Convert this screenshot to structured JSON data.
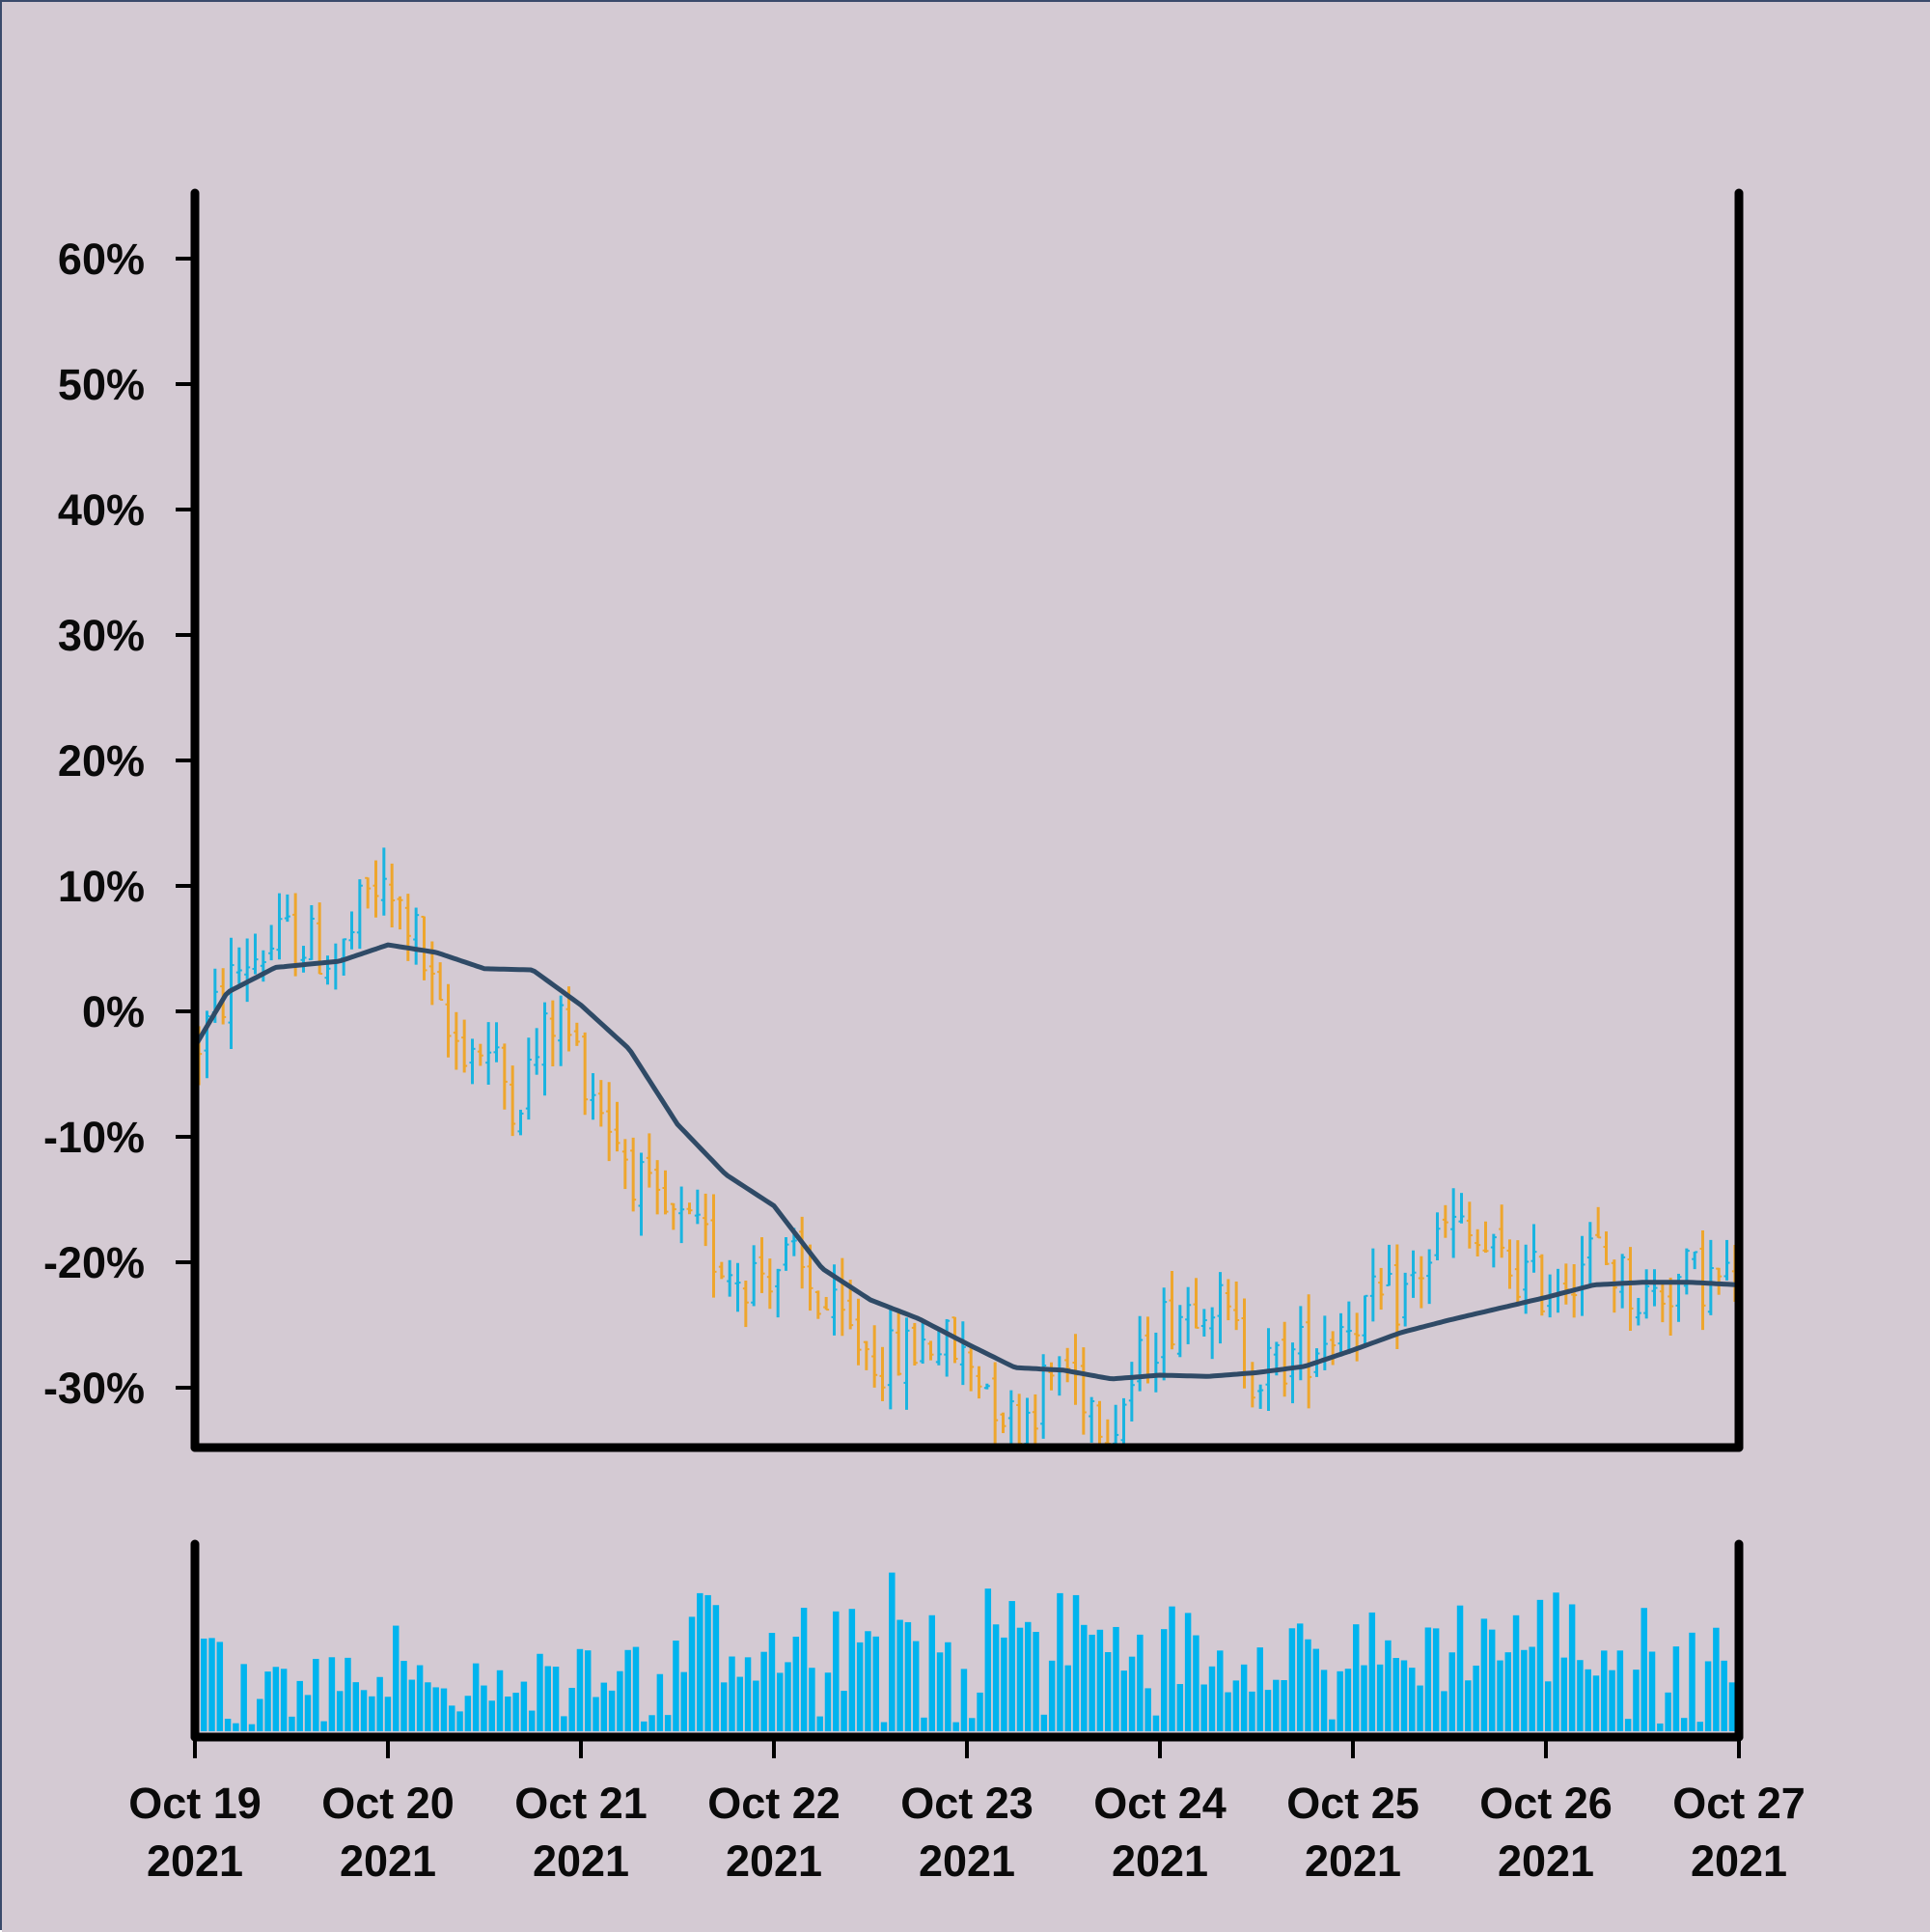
{
  "colors": {
    "background": "#d4cad3",
    "axis": "#000000",
    "up": "#1ab4e0",
    "down": "#eea62d",
    "moving_average": "#2f4a66",
    "volume": "#00b4ee"
  },
  "chart_data": [
    {
      "type": "ohlc",
      "title": "",
      "xlabel": "",
      "ylabel": "",
      "ylim": [
        -34,
        65
      ],
      "xlim": [
        "2021-10-19",
        "2021-10-27"
      ],
      "grid": false,
      "yticks": [
        "60%",
        "50%",
        "40%",
        "30%",
        "20%",
        "10%",
        "0%",
        "-10%",
        "-20%",
        "-30%"
      ],
      "ytick_values": [
        60,
        50,
        40,
        30,
        20,
        10,
        0,
        -10,
        -20,
        -30
      ],
      "xticks": [
        {
          "line1": "Oct 19",
          "line2": "2021"
        },
        {
          "line1": "Oct 20",
          "line2": "2021"
        },
        {
          "line1": "Oct 21",
          "line2": "2021"
        },
        {
          "line1": "Oct 22",
          "line2": "2021"
        },
        {
          "line1": "Oct 23",
          "line2": "2021"
        },
        {
          "line1": "Oct 24",
          "line2": "2021"
        },
        {
          "line1": "Oct 25",
          "line2": "2021"
        },
        {
          "line1": "Oct 26",
          "line2": "2021"
        },
        {
          "line1": "Oct 27",
          "line2": "2021"
        }
      ],
      "price_path": [
        {
          "date": "2021-10-19 00:00",
          "value": -3
        },
        {
          "date": "2021-10-19 06:00",
          "value": 4
        },
        {
          "date": "2021-10-19 12:00",
          "value": 6
        },
        {
          "date": "2021-10-19 18:00",
          "value": 4
        },
        {
          "date": "2021-10-19 22:00",
          "value": 10
        },
        {
          "date": "2021-10-20 03:00",
          "value": 7
        },
        {
          "date": "2021-10-20 07:00",
          "value": -2
        },
        {
          "date": "2021-10-20 12:00",
          "value": -3
        },
        {
          "date": "2021-10-20 16:00",
          "value": -7
        },
        {
          "date": "2021-10-20 21:00",
          "value": 0
        },
        {
          "date": "2021-10-21 03:00",
          "value": -8
        },
        {
          "date": "2021-10-21 09:00",
          "value": -16
        },
        {
          "date": "2021-10-21 14:00",
          "value": -18
        },
        {
          "date": "2021-10-21 20:00",
          "value": -21
        },
        {
          "date": "2021-10-22 02:00",
          "value": -20
        },
        {
          "date": "2021-10-22 08:00",
          "value": -25
        },
        {
          "date": "2021-10-22 14:00",
          "value": -28
        },
        {
          "date": "2021-10-22 20:00",
          "value": -26
        },
        {
          "date": "2021-10-23 02:00",
          "value": -29
        },
        {
          "date": "2021-10-23 06:00",
          "value": -33
        },
        {
          "date": "2021-10-23 12:00",
          "value": -28
        },
        {
          "date": "2021-10-23 18:00",
          "value": -33
        },
        {
          "date": "2021-10-24 00:00",
          "value": -25
        },
        {
          "date": "2021-10-24 06:00",
          "value": -22
        },
        {
          "date": "2021-10-24 12:00",
          "value": -29
        },
        {
          "date": "2021-10-24 18:00",
          "value": -27
        },
        {
          "date": "2021-10-25 00:00",
          "value": -24
        },
        {
          "date": "2021-10-25 06:00",
          "value": -23
        },
        {
          "date": "2021-10-25 12:00",
          "value": -17
        },
        {
          "date": "2021-10-25 18:00",
          "value": -20
        },
        {
          "date": "2021-10-26 00:00",
          "value": -22
        },
        {
          "date": "2021-10-26 06:00",
          "value": -19
        },
        {
          "date": "2021-10-26 12:00",
          "value": -23
        },
        {
          "date": "2021-10-26 18:00",
          "value": -21
        },
        {
          "date": "2021-10-27 00:00",
          "value": -22
        }
      ],
      "moving_average": [
        {
          "date": "2021-10-19 00:00",
          "value": -2.8
        },
        {
          "date": "2021-10-19 04:00",
          "value": 1.5
        },
        {
          "date": "2021-10-19 10:00",
          "value": 3.5
        },
        {
          "date": "2021-10-19 18:00",
          "value": 4.0
        },
        {
          "date": "2021-10-20 00:00",
          "value": 5.3
        },
        {
          "date": "2021-10-20 06:00",
          "value": 4.7
        },
        {
          "date": "2021-10-20 12:00",
          "value": 3.4
        },
        {
          "date": "2021-10-20 18:00",
          "value": 3.3
        },
        {
          "date": "2021-10-21 00:00",
          "value": 0.5
        },
        {
          "date": "2021-10-21 06:00",
          "value": -3
        },
        {
          "date": "2021-10-21 12:00",
          "value": -9
        },
        {
          "date": "2021-10-21 18:00",
          "value": -13
        },
        {
          "date": "2021-10-22 00:00",
          "value": -15.5
        },
        {
          "date": "2021-10-22 06:00",
          "value": -20.5
        },
        {
          "date": "2021-10-22 12:00",
          "value": -23
        },
        {
          "date": "2021-10-22 18:00",
          "value": -24.5
        },
        {
          "date": "2021-10-23 00:00",
          "value": -26.5
        },
        {
          "date": "2021-10-23 06:00",
          "value": -28.4
        },
        {
          "date": "2021-10-23 12:00",
          "value": -28.6
        },
        {
          "date": "2021-10-23 18:00",
          "value": -29.3
        },
        {
          "date": "2021-10-24 00:00",
          "value": -29.0
        },
        {
          "date": "2021-10-24 06:00",
          "value": -29.1
        },
        {
          "date": "2021-10-24 12:00",
          "value": -28.8
        },
        {
          "date": "2021-10-24 18:00",
          "value": -28.3
        },
        {
          "date": "2021-10-25 00:00",
          "value": -27
        },
        {
          "date": "2021-10-25 06:00",
          "value": -25.6
        },
        {
          "date": "2021-10-25 12:00",
          "value": -24.6
        },
        {
          "date": "2021-10-25 18:00",
          "value": -23.7
        },
        {
          "date": "2021-10-26 00:00",
          "value": -22.8
        },
        {
          "date": "2021-10-26 06:00",
          "value": -21.8
        },
        {
          "date": "2021-10-26 12:00",
          "value": -21.6
        },
        {
          "date": "2021-10-26 18:00",
          "value": -21.6
        },
        {
          "date": "2021-10-27 00:00",
          "value": -21.8
        }
      ]
    },
    {
      "type": "bar",
      "title": "",
      "xlabel": "",
      "ylabel": "",
      "subject": "volume",
      "xlim": [
        "2021-10-19",
        "2021-10-27"
      ],
      "ylim": [
        0,
        1
      ],
      "volume_profile": [
        0.62,
        0.45,
        0.52,
        0.35,
        0.6,
        0.28,
        0.48,
        0.3,
        0.55,
        0.4,
        0.25,
        0.3,
        0.42,
        0.2,
        0.33,
        0.62,
        0.5,
        0.55,
        0.45,
        0.62,
        0.55,
        0.65,
        0.7,
        0.75,
        0.45,
        0.6,
        0.72,
        0.55,
        0.62,
        0.78,
        0.65,
        0.7,
        0.48,
        0.62,
        0.85,
        0.68,
        0.6,
        0.75,
        0.66,
        0.55,
        0.72,
        0.62,
        0.58,
        0.48,
        0.52,
        0.66,
        0.72,
        0.55,
        0.6,
        0.68,
        0.52,
        0.5,
        0.6,
        0.58,
        0.72,
        0.66,
        0.62,
        0.68,
        0.7,
        0.58,
        0.55,
        0.62,
        0.5,
        0.45,
        0.56,
        0.72
      ]
    }
  ]
}
